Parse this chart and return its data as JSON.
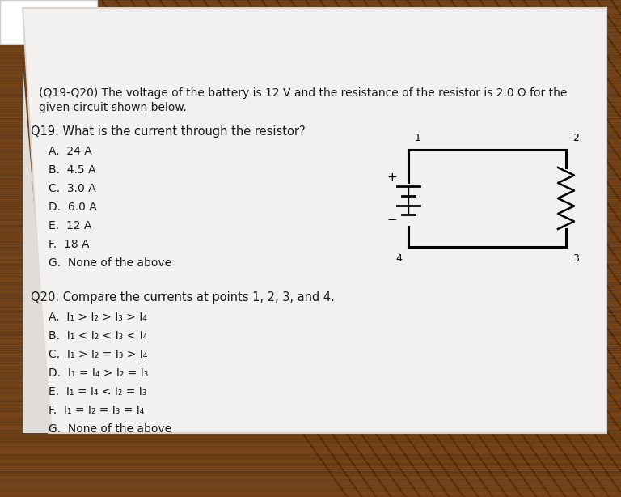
{
  "bg_wood_color": "#7a4a1e",
  "bg_wood_light": "#8a5a2a",
  "paper_color": "#f0f0ee",
  "paper_shadow": "#d0cdc8",
  "text_color": "#1a1a1a",
  "title_line1": "(Q19-Q20) The voltage of the battery is 12 V and the resistance of the resistor is 2.0 Ω for the",
  "title_line2": "given circuit shown below.",
  "q19_text": "Q19. What is the current through the resistor?",
  "q19_choices": [
    "A.  24 A",
    "B.  4.5 A",
    "C.  3.0 A",
    "D.  6.0 A",
    "E.  12 A",
    "F.  18 A",
    "G.  None of the above"
  ],
  "q20_text": "Q20. Compare the currents at points 1, 2, 3, and 4.",
  "q20_choices": [
    "A.  I₁ > I₂ > I₃ > I₄",
    "B.  I₁ < I₂ < I₃ < I₄",
    "C.  I₁ > I₂ = I₃ > I₄",
    "D.  I₁ = I₄ > I₂ = I₃",
    "E.  I₁ = I₄ < I₂ = I₃",
    "F.  I₁ = I₂ = I₃ = I₄",
    "G.  None of the above"
  ],
  "font_size_title": 10.0,
  "font_size_q": 10.5,
  "font_size_choices": 10.0,
  "white_bar_color": "#e8e8e8",
  "notebook_color": "#f5f4f2"
}
